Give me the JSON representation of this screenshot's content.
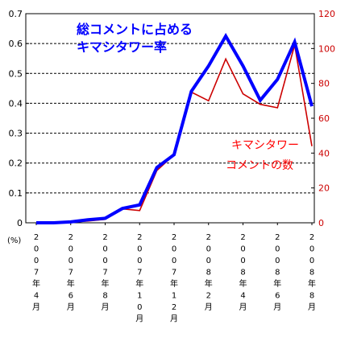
{
  "chart_data": {
    "type": "line",
    "title_lines": [
      "総コメントに占める",
      "キマシタワー率"
    ],
    "annotation_lines": [
      "キマシタワー",
      "コメントの数"
    ],
    "y_left_unit": "(%)",
    "ylim_left": [
      0,
      0.7
    ],
    "yticks_left": [
      "0",
      "0.1",
      "0.2",
      "0.3",
      "0.4",
      "0.5",
      "0.6",
      "0.7"
    ],
    "ylim_right": [
      0,
      120
    ],
    "yticks_right": [
      "0",
      "20",
      "40",
      "60",
      "80",
      "100",
      "120"
    ],
    "grid": "horizontal-dashed",
    "x_tick_labels": [
      [
        "2",
        "0",
        "0",
        "7",
        "年",
        "4",
        "月"
      ],
      [
        "2",
        "0",
        "0",
        "7",
        "年",
        "6",
        "月"
      ],
      [
        "2",
        "0",
        "0",
        "7",
        "年",
        "8",
        "月"
      ],
      [
        "2",
        "0",
        "0",
        "7",
        "年",
        "1",
        "0",
        "月"
      ],
      [
        "2",
        "0",
        "0",
        "7",
        "年",
        "1",
        "2",
        "月"
      ],
      [
        "2",
        "0",
        "0",
        "8",
        "年",
        "2",
        "月"
      ],
      [
        "2",
        "0",
        "0",
        "8",
        "年",
        "4",
        "月"
      ],
      [
        "2",
        "0",
        "0",
        "8",
        "年",
        "6",
        "月"
      ],
      [
        "2",
        "0",
        "0",
        "8",
        "年",
        "8",
        "月"
      ]
    ],
    "x": [
      "2007-04",
      "2007-05",
      "2007-06",
      "2007-07",
      "2007-08",
      "2007-09",
      "2007-10",
      "2007-11",
      "2007-12",
      "2008-01",
      "2008-02",
      "2008-03",
      "2008-04",
      "2008-05",
      "2008-06",
      "2008-07",
      "2008-08"
    ],
    "series": [
      {
        "axis": "left",
        "color": "#0000ff",
        "values": [
          0.0,
          0.0,
          0.003,
          0.01,
          0.015,
          0.048,
          0.06,
          0.185,
          0.228,
          0.44,
          0.525,
          0.625,
          0.525,
          0.41,
          0.48,
          0.605,
          0.39
        ]
      },
      {
        "axis": "right",
        "color": "#cc0000",
        "values": [
          0,
          0,
          0.5,
          1,
          2,
          8,
          7,
          30,
          39,
          75,
          70,
          94,
          74,
          68,
          66,
          102,
          44
        ]
      }
    ]
  }
}
